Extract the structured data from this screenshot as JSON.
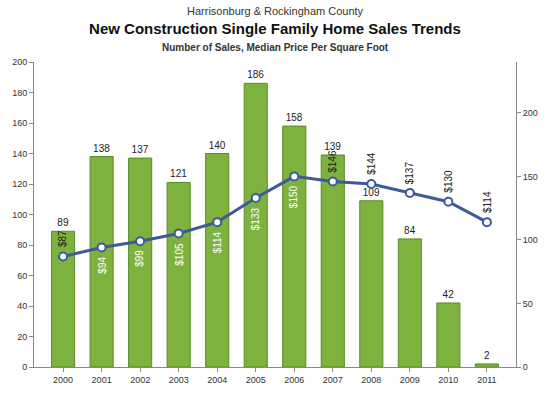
{
  "chart_data": {
    "type": "bar",
    "title": "New Construction Single Family Home Sales Trends",
    "subtitle": "Number of Sales, Median Price Per Square Foot",
    "annotations": [
      {
        "text": "Harrisonburg & Rockingham County"
      }
    ],
    "categories": [
      "2000",
      "2001",
      "2002",
      "2003",
      "2004",
      "2005",
      "2006",
      "2007",
      "2008",
      "2009",
      "2010",
      "2011"
    ],
    "series": [
      {
        "type": "bar",
        "color": "#7db23f",
        "values": [
          89,
          138,
          137,
          121,
          140,
          186,
          158,
          139,
          109,
          84,
          42,
          2
        ]
      },
      {
        "type": "line",
        "axis": "y2",
        "color": "#3f5a98",
        "marker": "circle",
        "line_style": "solid",
        "values": [
          87,
          94,
          99,
          105,
          114,
          133,
          150,
          146,
          144,
          137,
          130,
          114
        ],
        "value_labels": [
          "$87",
          "$94",
          "$99",
          "$105",
          "$114",
          "$133",
          "$150",
          "$146",
          "$144",
          "$137",
          "$130",
          "$114"
        ]
      }
    ],
    "ylim": [
      0,
      200
    ],
    "yticks": [
      0,
      20,
      40,
      60,
      80,
      100,
      120,
      140,
      160,
      180,
      200
    ],
    "y2lim": [
      0,
      240
    ],
    "y2ticks": [
      0,
      50,
      100,
      150,
      200
    ],
    "grid": false,
    "data_labels": true
  }
}
